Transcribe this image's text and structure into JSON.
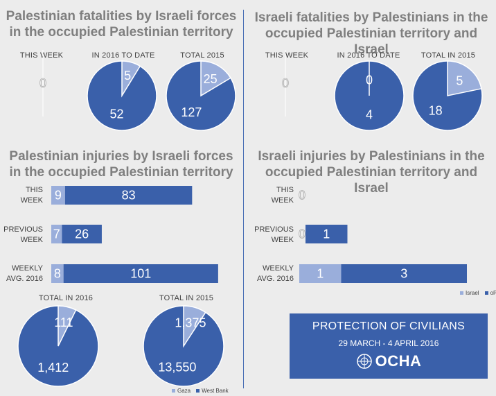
{
  "colors": {
    "light": "#9aaedb",
    "dark": "#3a60aa",
    "title": "#7f7f7f",
    "divider": "#4a6fb5"
  },
  "left_top": {
    "title_l1": "Palestinian fatalities by Israeli forces",
    "title_l2": "in the occupied Palestinian territory",
    "labels": [
      "THIS WEEK",
      "IN 2016 TO DATE",
      "TOTAL 2015"
    ]
  },
  "right_top": {
    "title_l1": "Israeli fatalities by Palestinians in the",
    "title_l2": "occupied Palestinian territory and Israel",
    "labels": [
      "THIS WEEK",
      "IN 2016 TO DATE",
      "TOTAL IN 2015"
    ]
  },
  "left_mid": {
    "title_l1": "Palestinian injuries by Israeli forces",
    "title_l2": "in the occupied Palestinian territory",
    "rows": [
      {
        "l1": "THIS",
        "l2": "WEEK"
      },
      {
        "l1": "PREVIOUS",
        "l2": "WEEK"
      },
      {
        "l1": "WEEKLY",
        "l2": "AVG. 2016"
      }
    ]
  },
  "right_mid": {
    "title_l1": "Israeli injuries by Palestinians in the",
    "title_l2": "occupied Palestinian territory and Israel",
    "rows": [
      {
        "l1": "THIS",
        "l2": "WEEK"
      },
      {
        "l1": "PREVIOUS",
        "l2": "WEEK"
      },
      {
        "l1": "WEEKLY",
        "l2": "AVG. 2016"
      }
    ]
  },
  "left_bottom": {
    "labels": [
      "TOTAL IN 2016",
      "TOTAL IN 2015"
    ]
  },
  "legend_left": [
    "Gaza",
    "West Bank"
  ],
  "legend_right": [
    "Israel",
    "oPt"
  ],
  "banner": {
    "title": "PROTECTION OF CIVILIANS",
    "dates": "29 MARCH - 4 APRIL 2016",
    "logo": "OCHA"
  },
  "chart_data": [
    {
      "type": "pie",
      "title": "Palestinian fatalities by Israeli forces in the occupied Palestinian territory",
      "subtitle": "THIS WEEK",
      "labels": [
        "Gaza",
        "West Bank"
      ],
      "values": [
        0,
        0
      ]
    },
    {
      "type": "pie",
      "subtitle": "IN 2016 TO DATE",
      "labels": [
        "Gaza",
        "West Bank"
      ],
      "values": [
        5,
        52
      ]
    },
    {
      "type": "pie",
      "subtitle": "TOTAL 2015",
      "labels": [
        "Gaza",
        "West Bank"
      ],
      "values": [
        25,
        127
      ]
    },
    {
      "type": "pie",
      "title": "Israeli fatalities by Palestinians in the occupied Palestinian territory and Israel",
      "subtitle": "THIS WEEK",
      "labels": [
        "Israel",
        "oPt"
      ],
      "values": [
        0,
        0
      ]
    },
    {
      "type": "pie",
      "subtitle": "IN 2016 TO DATE",
      "labels": [
        "Israel",
        "oPt"
      ],
      "values": [
        0,
        4
      ]
    },
    {
      "type": "pie",
      "subtitle": "TOTAL IN 2015",
      "labels": [
        "Israel",
        "oPt"
      ],
      "values": [
        5,
        18
      ]
    },
    {
      "type": "bar",
      "stacked": true,
      "orientation": "horizontal",
      "title": "Palestinian injuries by Israeli forces in the occupied Palestinian territory",
      "categories": [
        "THIS WEEK",
        "PREVIOUS WEEK",
        "WEEKLY AVG. 2016"
      ],
      "series": [
        {
          "name": "Gaza",
          "values": [
            9,
            7,
            8
          ]
        },
        {
          "name": "West Bank",
          "values": [
            83,
            26,
            101
          ]
        }
      ]
    },
    {
      "type": "bar",
      "stacked": true,
      "orientation": "horizontal",
      "title": "Israeli injuries by Palestinians in the occupied Palestinian territory and Israel",
      "categories": [
        "THIS WEEK",
        "PREVIOUS WEEK",
        "WEEKLY AVG. 2016"
      ],
      "series": [
        {
          "name": "Israel",
          "values": [
            0,
            0,
            1
          ]
        },
        {
          "name": "oPt",
          "values": [
            0,
            1,
            3
          ]
        }
      ]
    },
    {
      "type": "pie",
      "subtitle": "TOTAL IN 2016",
      "labels": [
        "Gaza",
        "West Bank"
      ],
      "values": [
        111,
        1412
      ],
      "value_labels": [
        "111",
        "1,412"
      ]
    },
    {
      "type": "pie",
      "subtitle": "TOTAL IN 2015",
      "labels": [
        "Gaza",
        "West Bank"
      ],
      "values": [
        1375,
        13550
      ],
      "value_labels": [
        "1,375",
        "13,550"
      ]
    }
  ]
}
